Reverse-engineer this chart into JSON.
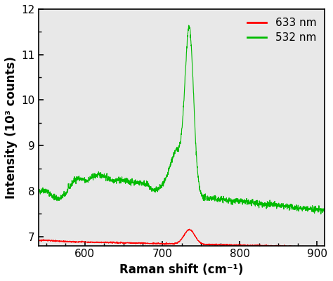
{
  "xlabel": "Raman shift (cm⁻¹)",
  "ylabel": "Intensity (10³ counts)",
  "xlim": [
    540,
    910
  ],
  "ylim": [
    6.8,
    12.0
  ],
  "yticks": [
    7,
    8,
    9,
    10,
    11,
    12
  ],
  "xticks": [
    600,
    700,
    800,
    900
  ],
  "legend": [
    "633 nm",
    "532 nm"
  ],
  "legend_colors": [
    "#ff0000",
    "#00bb00"
  ],
  "line_color_633": "#ff0000",
  "line_color_532": "#00bb00",
  "background_color": "#ffffff",
  "plot_bg_color": "#e8e8e8",
  "seed": 42
}
